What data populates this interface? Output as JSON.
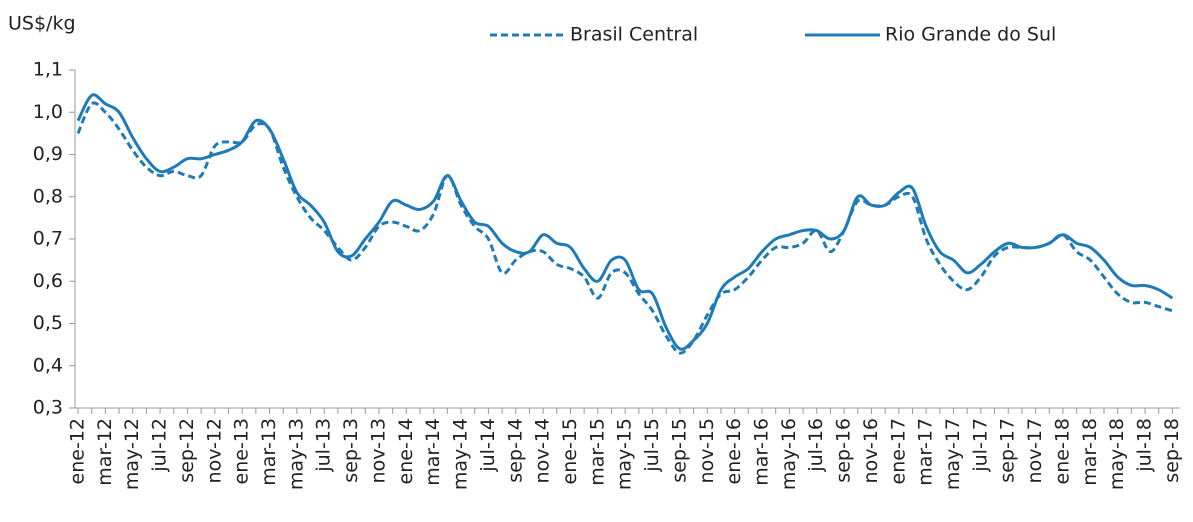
{
  "chart_data": {
    "type": "line",
    "y_label": "US$/kg",
    "categories": [
      "ene-12",
      null,
      "mar-12",
      null,
      "may-12",
      null,
      "jul-12",
      null,
      "sep-12",
      null,
      "nov-12",
      null,
      "ene-13",
      null,
      "mar-13",
      null,
      "may-13",
      null,
      "jul-13",
      null,
      "sep-13",
      null,
      "nov-13",
      null,
      "ene-14",
      null,
      "mar-14",
      null,
      "may-14",
      null,
      "jul-14",
      null,
      "sep-14",
      null,
      "nov-14",
      null,
      "ene-15",
      null,
      "mar-15",
      null,
      "may-15",
      null,
      "jul-15",
      null,
      "sep-15",
      null,
      "nov-15",
      null,
      "ene-16",
      null,
      "mar-16",
      null,
      "may-16",
      null,
      "jul-16",
      null,
      "sep-16",
      null,
      "nov-16",
      null,
      "ene-17",
      null,
      "mar-17",
      null,
      "may-17",
      null,
      "jul-17",
      null,
      "sep-17",
      null,
      "nov-17",
      null,
      "ene-18",
      null,
      "mar-18",
      null,
      "may-18",
      null,
      "jul-18",
      null,
      "sep-18"
    ],
    "series": [
      {
        "name": "Brasil Central",
        "color": "#1f7bb6",
        "dashed": true,
        "values": [
          0.95,
          1.02,
          1.0,
          0.96,
          0.91,
          0.87,
          0.85,
          0.86,
          0.85,
          0.85,
          0.92,
          0.93,
          0.93,
          0.97,
          0.96,
          0.87,
          0.8,
          0.75,
          0.72,
          0.68,
          0.65,
          0.68,
          0.73,
          0.74,
          0.73,
          0.72,
          0.76,
          0.85,
          0.78,
          0.73,
          0.7,
          0.62,
          0.65,
          0.67,
          0.67,
          0.64,
          0.63,
          0.61,
          0.56,
          0.62,
          0.62,
          0.57,
          0.53,
          0.47,
          0.43,
          0.46,
          0.52,
          0.57,
          0.58,
          0.61,
          0.65,
          0.68,
          0.68,
          0.69,
          0.72,
          0.67,
          0.72,
          0.79,
          0.78,
          0.78,
          0.8,
          0.8,
          0.7,
          0.64,
          0.6,
          0.58,
          0.61,
          0.66,
          0.68,
          0.68,
          0.68,
          0.69,
          0.71,
          0.67,
          0.65,
          0.61,
          0.57,
          0.55,
          0.55,
          0.54,
          0.53
        ]
      },
      {
        "name": "Rio Grande do Sul",
        "color": "#1f7bb6",
        "dashed": false,
        "values": [
          0.98,
          1.04,
          1.02,
          1.0,
          0.94,
          0.89,
          0.86,
          0.87,
          0.89,
          0.89,
          0.9,
          0.91,
          0.93,
          0.98,
          0.96,
          0.89,
          0.81,
          0.78,
          0.74,
          0.67,
          0.66,
          0.7,
          0.74,
          0.79,
          0.78,
          0.77,
          0.79,
          0.85,
          0.79,
          0.74,
          0.73,
          0.69,
          0.67,
          0.67,
          0.71,
          0.69,
          0.68,
          0.63,
          0.6,
          0.65,
          0.65,
          0.58,
          0.57,
          0.49,
          0.44,
          0.46,
          0.5,
          0.58,
          0.61,
          0.63,
          0.67,
          0.7,
          0.71,
          0.72,
          0.72,
          0.7,
          0.72,
          0.8,
          0.78,
          0.78,
          0.81,
          0.82,
          0.73,
          0.67,
          0.65,
          0.62,
          0.64,
          0.67,
          0.69,
          0.68,
          0.68,
          0.69,
          0.71,
          0.69,
          0.68,
          0.65,
          0.61,
          0.59,
          0.59,
          0.58,
          0.56
        ]
      }
    ],
    "ylim": [
      0.3,
      1.1
    ],
    "yticks": [
      {
        "value": 0.3,
        "label": "0,3"
      },
      {
        "value": 0.4,
        "label": "0,4"
      },
      {
        "value": 0.5,
        "label": "0,5"
      },
      {
        "value": 0.6,
        "label": "0,6"
      },
      {
        "value": 0.7,
        "label": "0,7"
      },
      {
        "value": 0.8,
        "label": "0,8"
      },
      {
        "value": 0.9,
        "label": "0,9"
      },
      {
        "value": 1.0,
        "label": "1,0"
      },
      {
        "value": 1.1,
        "label": "1,1"
      }
    ],
    "grid": false,
    "legend": "top"
  }
}
